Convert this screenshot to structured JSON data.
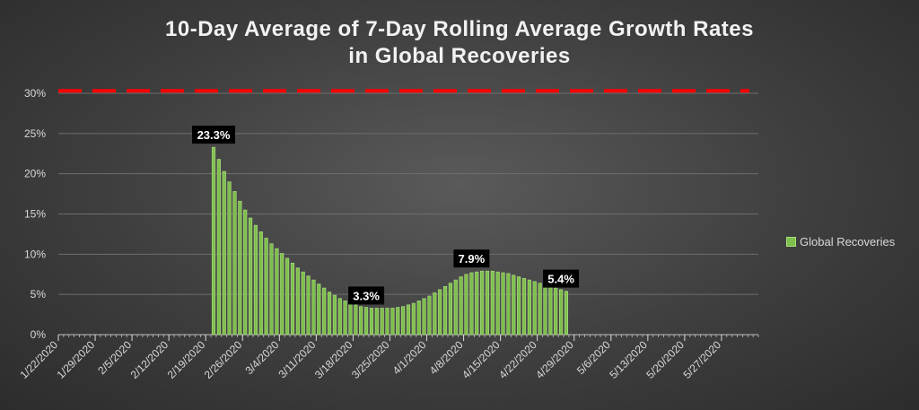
{
  "chart_data": {
    "type": "bar",
    "title": "10-Day Average of 7-Day Rolling Average Growth Rates\nin Global Recoveries",
    "xlabel": "",
    "ylabel": "",
    "ylim": [
      0,
      30
    ],
    "yticks": [
      "0%",
      "5%",
      "10%",
      "15%",
      "20%",
      "25%",
      "30%"
    ],
    "xticks": [
      "1/22/2020",
      "1/29/2020",
      "2/5/2020",
      "2/12/2020",
      "2/19/2020",
      "2/26/2020",
      "3/4/2020",
      "3/11/2020",
      "3/18/2020",
      "3/25/2020",
      "4/1/2020",
      "4/8/2020",
      "4/15/2020",
      "4/22/2020",
      "4/29/2020",
      "5/6/2020",
      "5/13/2020",
      "5/20/2020",
      "5/27/2020"
    ],
    "grid": true,
    "legend_position": "right",
    "threshold_line": {
      "value": 30.3,
      "style": "dashed",
      "color": "#ff0000"
    },
    "series": [
      {
        "name": "Global Recoveries",
        "color": "#7fbf4d",
        "x_start": "1/22/2020",
        "x_end": "6/1/2020",
        "values": [
          null,
          null,
          null,
          null,
          null,
          null,
          null,
          null,
          null,
          null,
          null,
          null,
          null,
          null,
          null,
          null,
          null,
          null,
          null,
          null,
          null,
          null,
          null,
          null,
          null,
          null,
          null,
          null,
          null,
          23.3,
          21.8,
          20.3,
          19.0,
          17.8,
          16.6,
          15.5,
          14.5,
          13.6,
          12.8,
          12.0,
          11.3,
          10.7,
          10.1,
          9.5,
          8.9,
          8.3,
          7.8,
          7.3,
          6.8,
          6.3,
          5.8,
          5.3,
          4.9,
          4.5,
          4.2,
          3.9,
          3.7,
          3.5,
          3.4,
          3.3,
          3.3,
          3.3,
          3.3,
          3.3,
          3.4,
          3.5,
          3.7,
          3.9,
          4.2,
          4.5,
          4.8,
          5.2,
          5.6,
          6.0,
          6.4,
          6.8,
          7.2,
          7.5,
          7.7,
          7.8,
          7.9,
          7.9,
          7.9,
          7.8,
          7.7,
          7.6,
          7.4,
          7.2,
          7.0,
          6.8,
          6.6,
          6.4,
          6.2,
          6.0,
          5.8,
          5.6,
          5.4,
          null,
          null,
          null,
          null,
          null,
          null,
          null,
          null,
          null,
          null,
          null,
          null,
          null,
          null,
          null,
          null,
          null,
          null,
          null,
          null,
          null,
          null,
          null,
          null,
          null,
          null,
          null,
          null,
          null,
          null,
          null,
          null,
          null,
          null,
          null,
          null
        ]
      }
    ],
    "data_labels": [
      {
        "text": "23.3%",
        "value": 23.3,
        "date": "2/20/2020"
      },
      {
        "text": "3.3%",
        "value": 3.3,
        "date": "3/20/2020"
      },
      {
        "text": "7.9%",
        "value": 7.9,
        "date": "4/9/2020"
      },
      {
        "text": "5.4%",
        "value": 5.4,
        "date": "4/26/2020"
      }
    ]
  }
}
